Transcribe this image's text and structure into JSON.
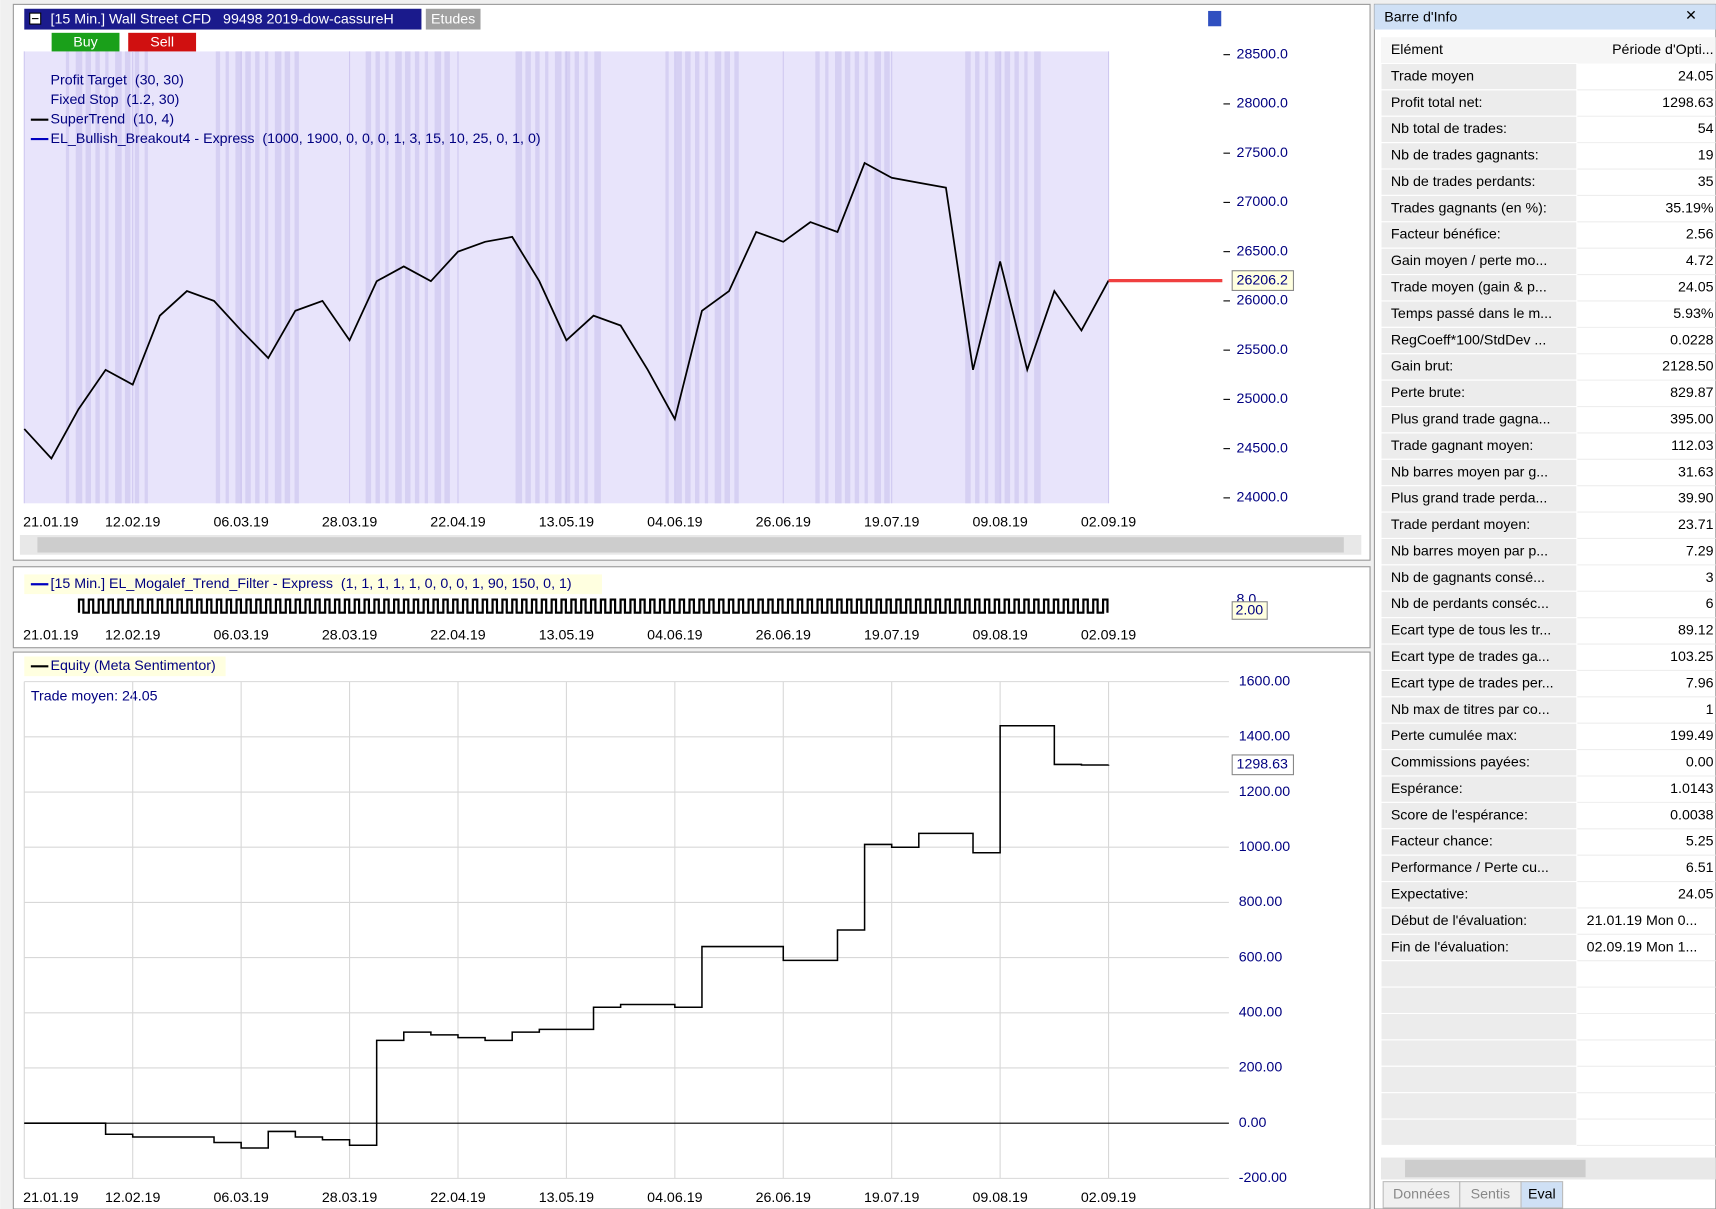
{
  "header": {
    "title": "[15 Min.] Wall Street CFD   99498 2019-dow-cassureH",
    "studies": "Etudes",
    "buy": "Buy",
    "sell": "Sell"
  },
  "dates": [
    "21.01.19",
    "12.02.19",
    "06.03.19",
    "28.03.19",
    "22.04.19",
    "13.05.19",
    "04.06.19",
    "26.06.19",
    "19.07.19",
    "09.08.19",
    "02.09.19"
  ],
  "price_panel": {
    "legend": [
      "Profit Target  (30, 30)",
      "Fixed Stop  (1.2, 30)",
      "SuperTrend  (10, 4)",
      "EL_Bullish_Breakout4 - Express  (1000, 1900, 0, 0, 0, 1, 3, 15, 10, 25, 0, 1, 0)"
    ],
    "ylim": [
      23945,
      28533
    ],
    "yticks": [
      {
        "value": 28500,
        "label": "28500.0"
      },
      {
        "value": 28000,
        "label": "28000.0"
      },
      {
        "value": 27500,
        "label": "27500.0"
      },
      {
        "value": 27000,
        "label": "27000.0"
      },
      {
        "value": 26500,
        "label": "26500.0"
      },
      {
        "value": 26000,
        "label": "26000.0"
      },
      {
        "value": 25500,
        "label": "25500.0"
      },
      {
        "value": 25000,
        "label": "25000.0"
      },
      {
        "value": 24500,
        "label": "24500.0"
      },
      {
        "value": 24000,
        "label": "24000.0"
      }
    ],
    "values": [
      24700,
      24400,
      24900,
      25300,
      25150,
      25850,
      26100,
      26000,
      25700,
      25420,
      25900,
      26000,
      25600,
      26200,
      26350,
      26200,
      26500,
      26600,
      26650,
      26200,
      25600,
      25850,
      25750,
      25300,
      24800,
      25900,
      26100,
      26700,
      26600,
      26800,
      26700,
      27400,
      27250,
      27200,
      27150,
      25300,
      26400,
      25300,
      26100,
      25700,
      26206.2
    ],
    "color": "#000000",
    "last": 26206.2
  },
  "indicator_panel": {
    "legend": "[15 Min.] EL_Mogalef_Trend_Filter - Express  (1, 1, 1, 1, 1, 0, 0, 0, 1, 90, 150, 0, 1)",
    "tick": {
      "value": 8,
      "label": "8.0"
    },
    "last": {
      "value": 2,
      "label": "2.00"
    }
  },
  "equity_panel": {
    "legend": "Equity (Meta Sentimentor)",
    "note": "Trade moyen: 24.05",
    "ylim": [
      -200,
      1600
    ],
    "yticks": [
      {
        "value": 1600,
        "label": "1600.00"
      },
      {
        "value": 1400,
        "label": "1400.00"
      },
      {
        "value": 1200,
        "label": "1200.00"
      },
      {
        "value": 1000,
        "label": "1000.00"
      },
      {
        "value": 800,
        "label": "800.00"
      },
      {
        "value": 600,
        "label": "600.00"
      },
      {
        "value": 400,
        "label": "400.00"
      },
      {
        "value": 200,
        "label": "200.00"
      },
      {
        "value": 0,
        "label": "0.00"
      },
      {
        "value": -200,
        "label": "-200.00"
      }
    ],
    "values": [
      0,
      0,
      0,
      -40,
      -50,
      -50,
      -50,
      -70,
      -90,
      -30,
      -50,
      -60,
      -80,
      300,
      330,
      320,
      310,
      300,
      330,
      340,
      340,
      420,
      430,
      430,
      420,
      640,
      640,
      640,
      590,
      590,
      700,
      1010,
      1000,
      1050,
      1050,
      980,
      1440,
      1440,
      1300,
      1298,
      1298.63
    ],
    "last": 1298.63
  },
  "info": {
    "title": "Barre d'Info",
    "columns": [
      "Elément",
      "Période d'Opti..."
    ],
    "rows": [
      [
        "Trade moyen",
        "24.05"
      ],
      [
        "Profit total net:",
        "1298.63"
      ],
      [
        "Nb total de trades:",
        "54"
      ],
      [
        "Nb de trades gagnants:",
        "19"
      ],
      [
        "Nb de trades perdants:",
        "35"
      ],
      [
        "Trades gagnants (en %):",
        "35.19%"
      ],
      [
        "Facteur bénéfice:",
        "2.56"
      ],
      [
        "Gain moyen / perte mo...",
        "4.72"
      ],
      [
        "Trade moyen (gain & p...",
        "24.05"
      ],
      [
        "Temps passé dans le m...",
        "5.93%"
      ],
      [
        "RegCoeff*100/StdDev ...",
        "0.0228"
      ],
      [
        "Gain brut:",
        "2128.50"
      ],
      [
        "Perte brute:",
        "829.87"
      ],
      [
        "Plus grand trade gagna...",
        "395.00"
      ],
      [
        "Trade gagnant moyen:",
        "112.03"
      ],
      [
        "Nb barres moyen par g...",
        "31.63"
      ],
      [
        "Plus grand trade perda...",
        "39.90"
      ],
      [
        "Trade perdant moyen:",
        "23.71"
      ],
      [
        "Nb barres moyen par p...",
        "7.29"
      ],
      [
        "Nb de gagnants consé...",
        "3"
      ],
      [
        "Nb de perdants conséc...",
        "6"
      ],
      [
        "Ecart type de tous les tr...",
        "89.12"
      ],
      [
        "Ecart type de trades ga...",
        "103.25"
      ],
      [
        "Ecart type de trades per...",
        "7.96"
      ],
      [
        "Nb max de titres par co...",
        "1"
      ],
      [
        "Perte cumulée max:",
        "199.49"
      ],
      [
        "Commissions payées:",
        "0.00"
      ],
      [
        "Espérance:",
        "1.0143"
      ],
      [
        "Score de l'espérance:",
        "0.0038"
      ],
      [
        "Facteur chance:",
        "5.25"
      ],
      [
        "Performance / Perte cu...",
        "6.51"
      ],
      [
        "Expectative:",
        "24.05"
      ],
      [
        "Début de l'évaluation:",
        "21.01.19 Mon 0..."
      ],
      [
        "Fin de l'évaluation:",
        "02.09.19 Mon 1..."
      ]
    ],
    "tabs": [
      "Données",
      "Sentis",
      "Eval"
    ]
  }
}
